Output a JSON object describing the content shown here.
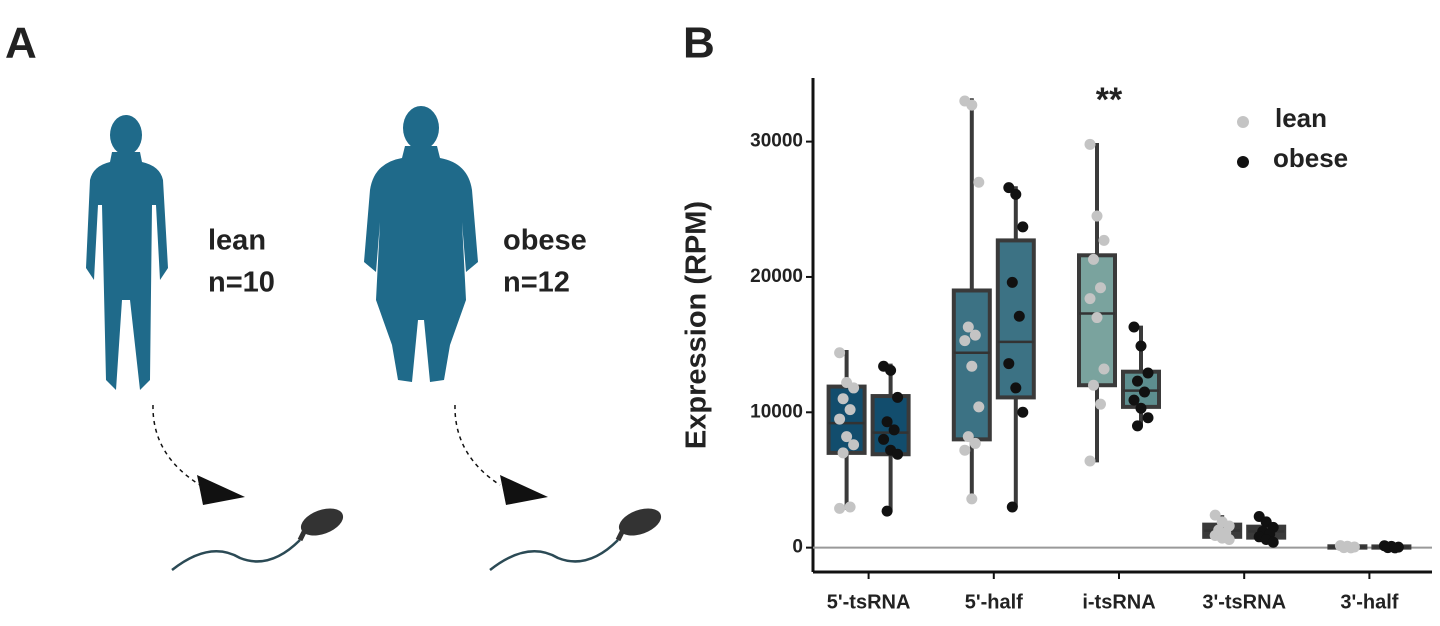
{
  "panel_a": {
    "label": "A",
    "groups": [
      {
        "label": "lean",
        "n": "n=10"
      },
      {
        "label": "obese",
        "n": "n=12"
      }
    ]
  },
  "chart_data": {
    "type": "box",
    "panel_label": "B",
    "y_label": "Expression (RPM)",
    "annotation": "**",
    "annotation_category": 2,
    "categories": [
      "5'-tsRNA",
      "5'-half",
      "i-tsRNA",
      "3'-tsRNA",
      "3'-half"
    ],
    "ylim": [
      -1800,
      34700
    ],
    "yticks": [
      0,
      10000,
      20000,
      30000
    ],
    "reference_line": 0,
    "legend": "top-right",
    "series": [
      {
        "name": "lean",
        "color": "#c4c4c4",
        "box_colors": [
          "#124d6d",
          "#3c7284",
          "#7aa39e",
          "#3a3a3a",
          "#3a3a3a"
        ],
        "boxes": [
          {
            "q1": 7000,
            "median": 9200,
            "q3": 11900,
            "whisker_low": 2800,
            "whisker_high": 14600,
            "points": [
              14400,
              12200,
              11800,
              11000,
              10200,
              9500,
              8200,
              7600,
              7000,
              3000,
              2900
            ]
          },
          {
            "q1": 8000,
            "median": 14400,
            "q3": 19000,
            "whisker_low": 3500,
            "whisker_high": 33200,
            "points": [
              33000,
              32700,
              27000,
              16300,
              15700,
              15300,
              13400,
              10400,
              8200,
              7700,
              7200,
              3600
            ]
          },
          {
            "q1": 12000,
            "median": 17300,
            "q3": 21600,
            "whisker_low": 6300,
            "whisker_high": 29900,
            "points": [
              29800,
              24500,
              22700,
              21300,
              19200,
              18400,
              17000,
              13200,
              12000,
              10600,
              6400
            ]
          },
          {
            "q1": 800,
            "median": 1250,
            "q3": 1700,
            "whisker_low": 500,
            "whisker_high": 2400,
            "points": [
              2400,
              1900,
              1600,
              1300,
              1100,
              900,
              700,
              600
            ]
          },
          {
            "q1": 0,
            "median": 50,
            "q3": 100,
            "whisker_low": -50,
            "whisker_high": 200,
            "points": [
              150,
              100,
              50,
              0,
              -20
            ]
          }
        ]
      },
      {
        "name": "obese",
        "color": "#111111",
        "box_colors": [
          "#124d6d",
          "#3c7284",
          "#5d8e8f",
          "#3a3a3a",
          "#3a3a3a"
        ],
        "boxes": [
          {
            "q1": 6900,
            "median": 8500,
            "q3": 11200,
            "whisker_low": 2700,
            "whisker_high": 13600,
            "points": [
              13400,
              13100,
              11100,
              9300,
              8700,
              8000,
              7200,
              6900,
              2700
            ]
          },
          {
            "q1": 11100,
            "median": 15200,
            "q3": 22700,
            "whisker_low": 3000,
            "whisker_high": 26700,
            "points": [
              26600,
              26100,
              23700,
              19600,
              17100,
              13600,
              11800,
              10000,
              3000
            ]
          },
          {
            "q1": 10400,
            "median": 11600,
            "q3": 13000,
            "whisker_low": 9000,
            "whisker_high": 16400,
            "points": [
              16300,
              14900,
              12900,
              12300,
              11500,
              10900,
              10300,
              9600,
              9000
            ]
          },
          {
            "q1": 740,
            "median": 1200,
            "q3": 1550,
            "whisker_low": 400,
            "whisker_high": 2300,
            "points": [
              2300,
              1900,
              1500,
              1200,
              1000,
              800,
              600,
              400
            ]
          },
          {
            "q1": 0,
            "median": 40,
            "q3": 90,
            "whisker_low": -40,
            "whisker_high": 180,
            "points": [
              140,
              90,
              40,
              0,
              -20
            ]
          }
        ]
      }
    ]
  }
}
